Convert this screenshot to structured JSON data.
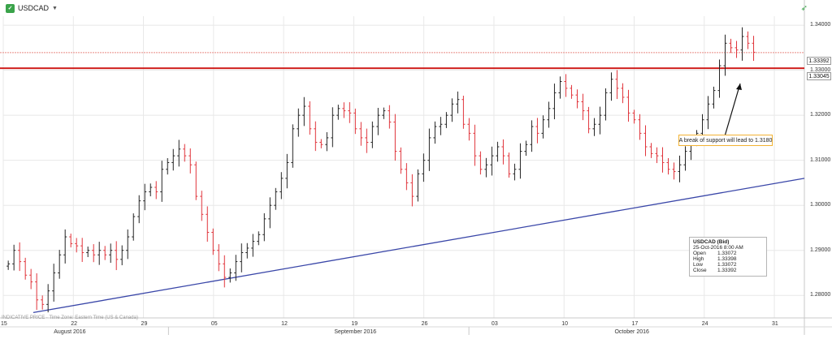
{
  "header": {
    "symbol": "USDCAD",
    "symbol_icon": "chart-symbol-icon",
    "caret": "▼",
    "corner_icon": "expand-arrow-icon"
  },
  "footer_note": "INDICATIVE PRICE · Time Zone: Eastern Time (US & Canada)",
  "annotation": "A break of support will lead to 1.3180",
  "ohlc_box": {
    "title": "USDCAD (Bid)",
    "datetime": "25-Oct-2016 8:00 AM",
    "rows": [
      {
        "label": "Open",
        "value": "1.33072"
      },
      {
        "label": "High",
        "value": "1.33398"
      },
      {
        "label": "Low",
        "value": "1.33072"
      },
      {
        "label": "Close",
        "value": "1.33392"
      }
    ]
  },
  "price_tags": {
    "current": "1.33392",
    "support": "1.33045"
  },
  "colors": {
    "up": "#222222",
    "down": "#e0333a",
    "trendline": "#3946a8",
    "support_line": "#d0201e",
    "current_line": "#e98a84",
    "grid": "#e8e8e8"
  },
  "chart_data": {
    "type": "ohlc",
    "title": "USDCAD",
    "ylim": [
      1.275,
      1.342
    ],
    "y_ticks": [
      "1.34000",
      "1.33000",
      "1.32000",
      "1.31000",
      "1.30000",
      "1.29000",
      "1.28000"
    ],
    "y_tick_values": [
      1.34,
      1.33,
      1.32,
      1.31,
      1.3,
      1.29,
      1.28
    ],
    "x_ticks": [
      "15",
      "22",
      "29",
      "05",
      "12",
      "19",
      "26",
      "03",
      "10",
      "17",
      "24",
      "31"
    ],
    "x_tick_offsets": [
      0,
      7,
      14,
      21,
      28,
      35,
      42,
      49,
      56,
      63,
      70,
      77
    ],
    "x_range": [
      0,
      80
    ],
    "months": [
      "August 2016",
      "September 2016",
      "October 2016"
    ],
    "month_offsets": [
      7,
      35,
      63
    ],
    "month_boundaries": [
      16.5,
      46.5
    ],
    "horizontal_lines": [
      {
        "name": "current",
        "value": 1.33392
      },
      {
        "name": "support",
        "value": 1.33045
      }
    ],
    "trendline": {
      "from": [
        3,
        1.2762
      ],
      "to": [
        80,
        1.306
      ]
    },
    "series": [
      {
        "name": "USDCAD (Bid)",
        "close": [
          1.287,
          1.29,
          1.2875,
          1.2845,
          1.283,
          1.279,
          1.278,
          1.281,
          1.285,
          1.289,
          1.293,
          1.2915,
          1.291,
          1.2895,
          1.29,
          1.289,
          1.29,
          1.289,
          1.29,
          1.288,
          1.29,
          1.293,
          1.2975,
          1.301,
          1.303,
          1.304,
          1.303,
          1.308,
          1.3095,
          1.311,
          1.3125,
          1.311,
          1.309,
          1.302,
          1.298,
          1.294,
          1.29,
          1.287,
          1.284,
          1.285,
          1.2875,
          1.2895,
          1.2905,
          1.292,
          1.2935,
          1.297,
          1.3,
          1.303,
          1.306,
          1.3095,
          1.317,
          1.32,
          1.322,
          1.317,
          1.314,
          1.3135,
          1.315,
          1.32,
          1.3215,
          1.321,
          1.3205,
          1.317,
          1.315,
          1.314,
          1.3175,
          1.32,
          1.321,
          1.3185,
          1.312,
          1.308,
          1.305,
          1.302,
          1.307,
          1.31,
          1.315,
          1.3175,
          1.318,
          1.32,
          1.3225,
          1.3235,
          1.318,
          1.316,
          1.311,
          1.308,
          1.309,
          1.311,
          1.313,
          1.311,
          1.307,
          1.308,
          1.312,
          1.3135,
          1.3175,
          1.316,
          1.319,
          1.3215,
          1.325,
          1.3275,
          1.326,
          1.3245,
          1.323,
          1.321,
          1.317,
          1.318,
          1.32,
          1.325,
          1.328,
          1.326,
          1.324,
          1.3205,
          1.319,
          1.316,
          1.313,
          1.3115,
          1.311,
          1.3095,
          1.308,
          1.3075,
          1.309,
          1.312,
          1.314,
          1.316,
          1.319,
          1.3225,
          1.3255,
          1.331,
          1.336,
          1.335,
          1.3345,
          1.3375,
          1.336,
          1.334
        ]
      }
    ]
  }
}
